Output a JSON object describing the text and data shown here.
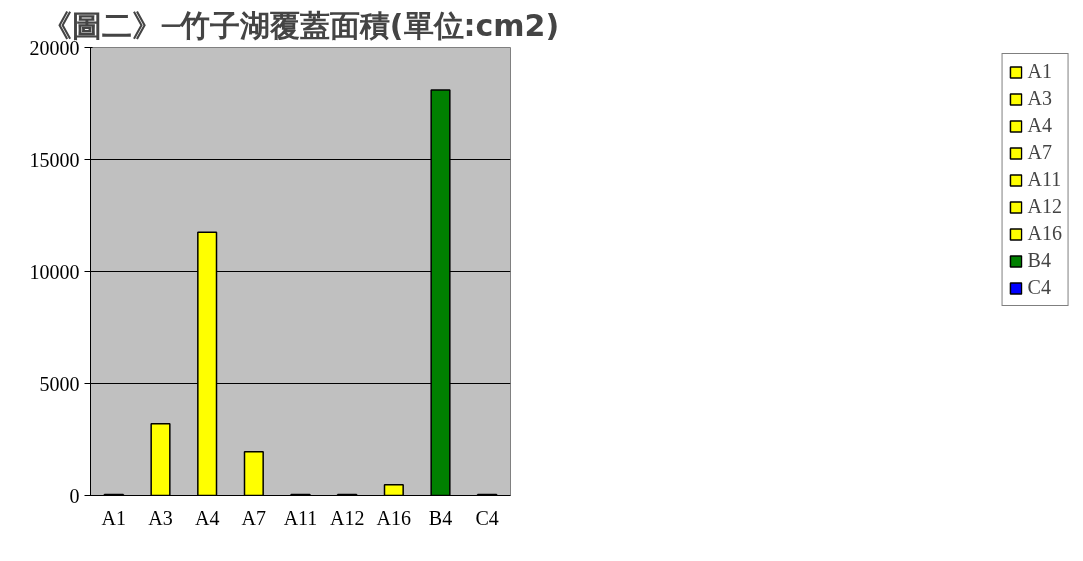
{
  "chart_data": {
    "type": "bar",
    "title": "《圖二》─竹子湖覆蓋面積(單位:cm2)",
    "categories": [
      "A1",
      "A3",
      "A4",
      "A7",
      "A11",
      "A12",
      "A16",
      "B4",
      "C4"
    ],
    "series": [
      {
        "name": "A1",
        "color": "#ffff00",
        "values": [
          50,
          null,
          null,
          null,
          null,
          null,
          null,
          null,
          null
        ]
      },
      {
        "name": "A3",
        "color": "#ffff00",
        "values": [
          null,
          3200,
          null,
          null,
          null,
          null,
          null,
          null,
          null
        ]
      },
      {
        "name": "A4",
        "color": "#ffff00",
        "values": [
          null,
          null,
          11750,
          null,
          null,
          null,
          null,
          null,
          null
        ]
      },
      {
        "name": "A7",
        "color": "#ffff00",
        "values": [
          null,
          null,
          null,
          1950,
          null,
          null,
          null,
          null,
          null
        ]
      },
      {
        "name": "A11",
        "color": "#ffff00",
        "values": [
          null,
          null,
          null,
          null,
          50,
          null,
          null,
          null,
          null
        ]
      },
      {
        "name": "A12",
        "color": "#ffff00",
        "values": [
          null,
          null,
          null,
          null,
          null,
          50,
          null,
          null,
          null
        ]
      },
      {
        "name": "A16",
        "color": "#ffff00",
        "values": [
          null,
          null,
          null,
          null,
          null,
          null,
          480,
          null,
          null
        ]
      },
      {
        "name": "B4",
        "color": "#008000",
        "values": [
          null,
          null,
          null,
          null,
          null,
          null,
          null,
          18100,
          null
        ]
      },
      {
        "name": "C4",
        "color": "#0000ff",
        "values": [
          null,
          null,
          null,
          null,
          null,
          null,
          null,
          null,
          50
        ]
      }
    ],
    "ylim": [
      0,
      20000
    ],
    "yticks": [
      0,
      5000,
      10000,
      15000,
      20000
    ],
    "grid": "y",
    "legend": "right"
  }
}
